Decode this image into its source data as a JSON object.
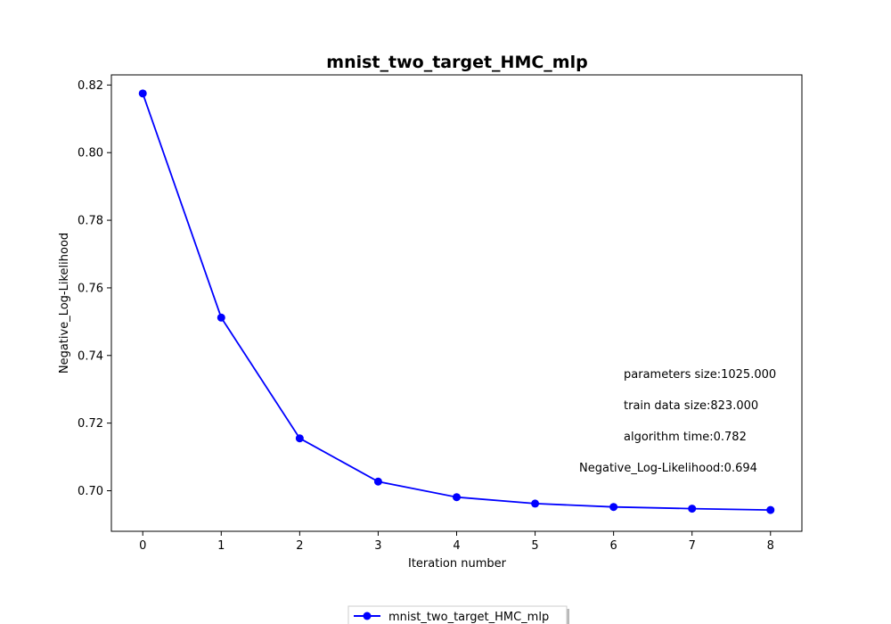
{
  "chart_data": {
    "type": "line",
    "title": "mnist_two_target_HMC_mlp",
    "xlabel": "Iteration number",
    "ylabel": "Negative_Log-Likelihood",
    "x": [
      0,
      1,
      2,
      3,
      4,
      5,
      6,
      7,
      8
    ],
    "xlim": [
      -0.4,
      8.4
    ],
    "ylim": [
      0.688,
      0.823
    ],
    "xticks": [
      "0",
      "1",
      "2",
      "3",
      "4",
      "5",
      "6",
      "7",
      "8"
    ],
    "yticks": [
      "0.70",
      "0.72",
      "0.74",
      "0.76",
      "0.78",
      "0.80",
      "0.82"
    ],
    "grid": false,
    "legend_position": "below plot",
    "series": [
      {
        "name": "mnist_two_target_HMC_mlp",
        "color": "#0000ff",
        "marker": "circle",
        "values": [
          0.8175,
          0.7512,
          0.7155,
          0.7027,
          0.6981,
          0.6962,
          0.6952,
          0.6947,
          0.6943
        ]
      }
    ],
    "annotations": [
      "parameters size:1025.000",
      "train data size:823.000",
      "algorithm time:0.782",
      "Negative_Log-Likelihood:0.694"
    ]
  }
}
